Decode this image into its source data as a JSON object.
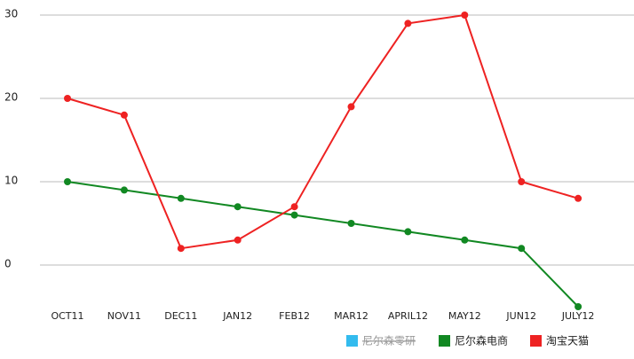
{
  "chart_data": {
    "type": "line",
    "categories": [
      "OCT11",
      "NOV11",
      "DEC11",
      "JAN12",
      "FEB12",
      "MAR12",
      "APRIL12",
      "MAY12",
      "JUN12",
      "JULY12"
    ],
    "series": [
      {
        "name": "尼尔森零研",
        "color": "#33bbee",
        "hidden": true,
        "values": [
          null,
          null,
          null,
          null,
          null,
          null,
          null,
          null,
          null,
          null
        ]
      },
      {
        "name": "尼尔森电商",
        "color": "#118822",
        "values": [
          10,
          9,
          8,
          7,
          6,
          5,
          4,
          3,
          2,
          -5
        ]
      },
      {
        "name": "淘宝天猫",
        "color": "#ee2222",
        "values": [
          20,
          18,
          2,
          3,
          7,
          19,
          29,
          30,
          10,
          8
        ]
      }
    ],
    "ylim": [
      -5,
      30
    ],
    "yticks": [
      0,
      10,
      20,
      30
    ],
    "grid": true,
    "legend": "bottom-right"
  }
}
